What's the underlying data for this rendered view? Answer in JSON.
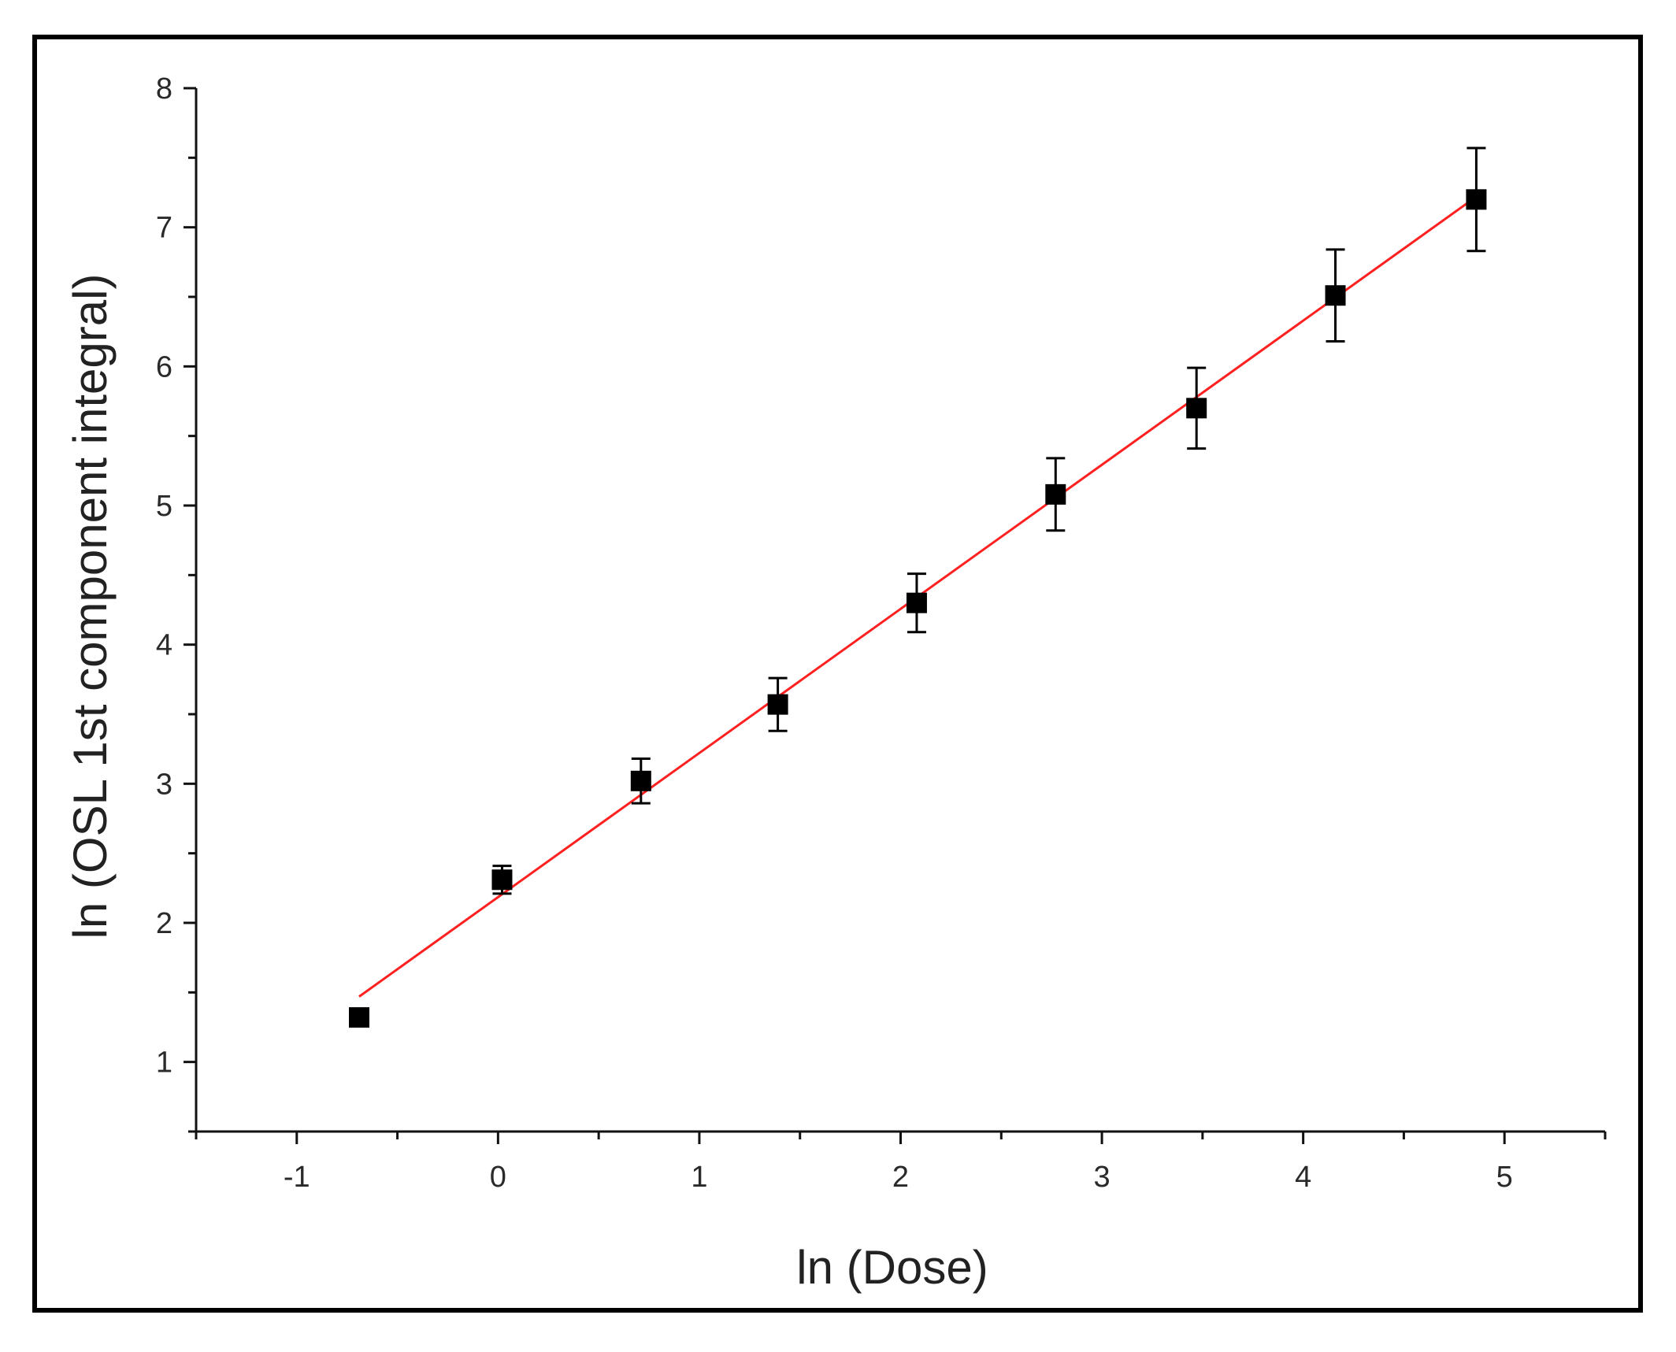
{
  "chart_data": {
    "type": "scatter",
    "title": "",
    "xlabel": "ln (Dose)",
    "ylabel": "ln (OSL 1st component integral)",
    "xlim": [
      -1.5,
      5.5
    ],
    "ylim": [
      0.5,
      8
    ],
    "xticks": [
      -1,
      0,
      1,
      2,
      3,
      4,
      5
    ],
    "yticks": [
      1,
      2,
      3,
      4,
      5,
      6,
      7,
      8
    ],
    "grid": false,
    "series": [
      {
        "marker": "square",
        "color": "#000000",
        "points": [
          {
            "x": -0.69,
            "y": 1.32,
            "err": 0.0
          },
          {
            "x": 0.02,
            "y": 2.31,
            "err": 0.1
          },
          {
            "x": 0.71,
            "y": 3.02,
            "err": 0.16
          },
          {
            "x": 1.39,
            "y": 3.57,
            "err": 0.19
          },
          {
            "x": 2.08,
            "y": 4.3,
            "err": 0.21
          },
          {
            "x": 2.77,
            "y": 5.08,
            "err": 0.26
          },
          {
            "x": 3.47,
            "y": 5.7,
            "err": 0.29
          },
          {
            "x": 4.16,
            "y": 6.51,
            "err": 0.33
          },
          {
            "x": 4.86,
            "y": 7.2,
            "err": 0.37
          }
        ]
      }
    ],
    "fit_line": {
      "color": "#ff2020",
      "x": [
        -0.69,
        4.86
      ],
      "y": [
        1.47,
        7.22
      ]
    }
  }
}
